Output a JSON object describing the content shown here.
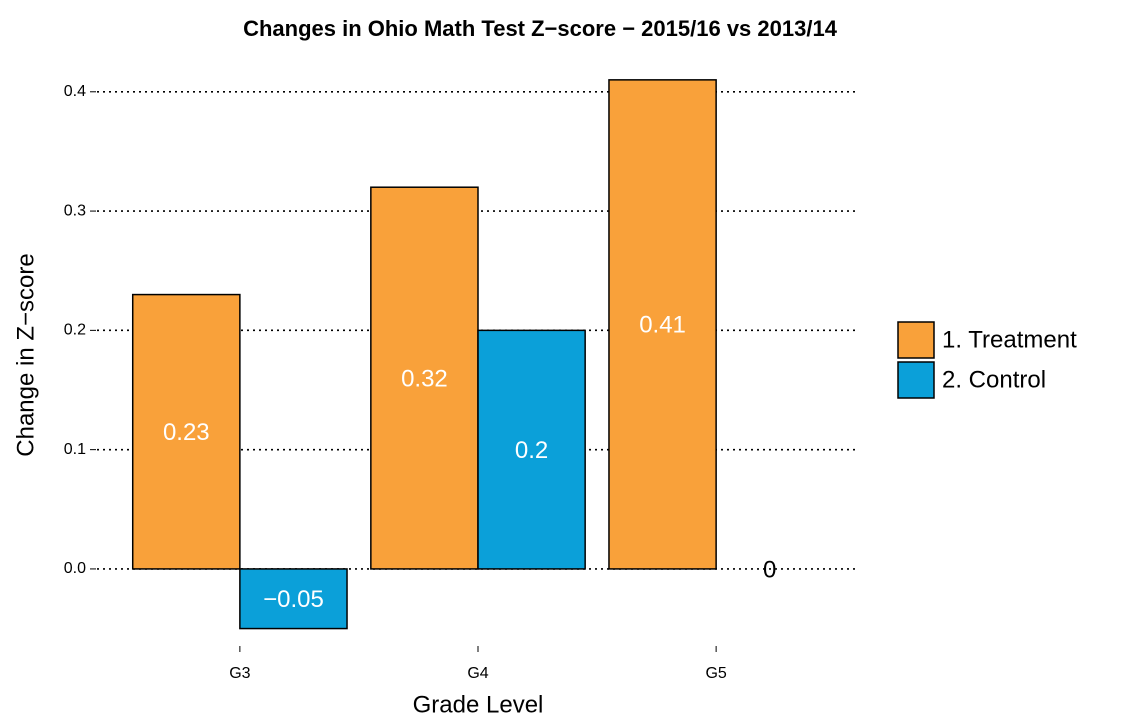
{
  "chart_data": {
    "type": "bar",
    "title": "Changes in Ohio Math Test Z−score − 2015/16 vs 2013/14",
    "x_label": "Grade Level",
    "y_label": "Change in Z−score",
    "categories": [
      "G3",
      "G4",
      "G5"
    ],
    "series": [
      {
        "name": "1. Treatment",
        "color": "#f9a13a",
        "values": [
          0.23,
          0.32,
          0.41
        ],
        "value_labels": [
          "0.23",
          "0.32",
          "0.41"
        ]
      },
      {
        "name": "2. Control",
        "color": "#0ba0d9",
        "values": [
          -0.05,
          0.2,
          0
        ],
        "value_labels": [
          "−0.05",
          "0.2",
          "0"
        ]
      }
    ],
    "ylim": [
      -0.06,
      0.43
    ],
    "yticks": [
      {
        "value": 0,
        "label": "0.0"
      },
      {
        "value": 0.1,
        "label": "0.1"
      },
      {
        "value": 0.2,
        "label": "0.2"
      },
      {
        "value": 0.3,
        "label": "0.3"
      },
      {
        "value": 0.4,
        "label": "0.4"
      }
    ],
    "grid": true,
    "legend": "right"
  }
}
